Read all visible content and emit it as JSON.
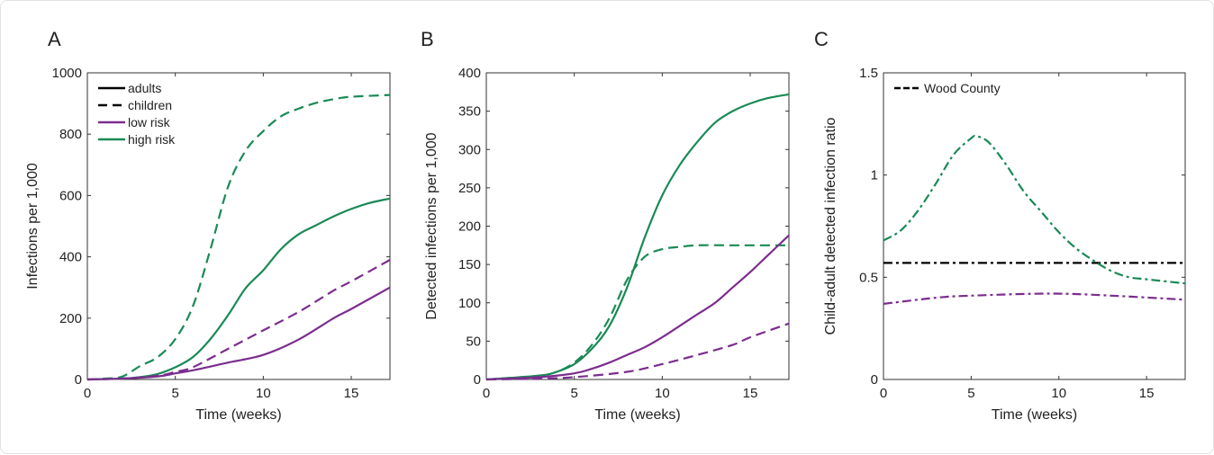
{
  "colors": {
    "low_risk": "#7b2d8e",
    "high_risk": "#1a8a55",
    "reference": "#000000"
  },
  "chart_data": [
    {
      "panel": "A",
      "type": "line",
      "xlabel": "Time (weeks)",
      "ylabel": "Infections per 1,000",
      "xlim": [
        0,
        17.2
      ],
      "ylim": [
        0,
        1000
      ],
      "xticks": [
        0,
        5,
        10,
        15
      ],
      "yticks": [
        0,
        200,
        400,
        600,
        800,
        1000
      ],
      "legend": {
        "placement": "top-left",
        "entries": [
          {
            "label": "adults",
            "style": "solid",
            "color": "#000000"
          },
          {
            "label": "children",
            "style": "dashed",
            "color": "#000000"
          },
          {
            "label": "low risk",
            "style": "solid",
            "color": "#7b2d8e"
          },
          {
            "label": "high risk",
            "style": "solid",
            "color": "#1a8a55"
          }
        ]
      },
      "series": [
        {
          "group": "high risk adults",
          "color": "#1a8a55",
          "style": "solid",
          "x": [
            0,
            2,
            3,
            4,
            5,
            6,
            7,
            8,
            9,
            10,
            11,
            12,
            13,
            14,
            15,
            16,
            17.2
          ],
          "y": [
            0,
            3,
            8,
            18,
            40,
            73,
            132,
            210,
            298,
            356,
            425,
            473,
            503,
            532,
            556,
            575,
            590
          ]
        },
        {
          "group": "high risk children",
          "color": "#1a8a55",
          "style": "dashed",
          "x": [
            0,
            1,
            2,
            3,
            4,
            5,
            6,
            7,
            8,
            9,
            10,
            11,
            12,
            13,
            14,
            15,
            17.2
          ],
          "y": [
            0,
            3,
            10,
            44,
            73,
            132,
            239,
            425,
            629,
            746,
            810,
            858,
            883,
            902,
            914,
            922,
            928
          ]
        },
        {
          "group": "low risk children",
          "color": "#7b2d8e",
          "style": "dashed",
          "x": [
            0,
            2,
            4,
            5,
            6,
            8,
            10,
            12,
            14,
            15,
            17.2
          ],
          "y": [
            0,
            3,
            12,
            25,
            40,
            100,
            160,
            220,
            290,
            320,
            390
          ]
        },
        {
          "group": "low risk adults",
          "color": "#7b2d8e",
          "style": "solid",
          "x": [
            0,
            2,
            4,
            5,
            6,
            8,
            10,
            12,
            14,
            15,
            17.2
          ],
          "y": [
            0,
            3,
            10,
            20,
            30,
            55,
            80,
            130,
            200,
            230,
            300
          ]
        }
      ]
    },
    {
      "panel": "B",
      "type": "line",
      "xlabel": "Time (weeks)",
      "ylabel": "Detected infections per 1,000",
      "xlim": [
        0,
        17.2
      ],
      "ylim": [
        0,
        400
      ],
      "xticks": [
        0,
        5,
        10,
        15
      ],
      "yticks": [
        0,
        50,
        100,
        150,
        200,
        250,
        300,
        350,
        400
      ],
      "series": [
        {
          "group": "high risk adults",
          "color": "#1a8a55",
          "style": "solid",
          "x": [
            0,
            3,
            4,
            5,
            6,
            7,
            8,
            9,
            10,
            11,
            12,
            13,
            14,
            15,
            16,
            17.2
          ],
          "y": [
            0,
            5,
            10,
            20,
            40,
            70,
            120,
            185,
            240,
            280,
            310,
            335,
            350,
            360,
            367,
            372
          ]
        },
        {
          "group": "high risk children",
          "color": "#1a8a55",
          "style": "dashed",
          "x": [
            0,
            3,
            4,
            5,
            6,
            7,
            8,
            9,
            10,
            11,
            12,
            14,
            17.2
          ],
          "y": [
            0,
            5,
            10,
            22,
            45,
            80,
            130,
            160,
            170,
            173,
            175,
            175,
            175
          ]
        },
        {
          "group": "low risk adults",
          "color": "#7b2d8e",
          "style": "solid",
          "x": [
            0,
            3,
            5,
            6,
            7,
            8,
            9,
            10,
            11,
            12,
            13,
            14,
            15,
            16,
            17.2
          ],
          "y": [
            0,
            3,
            8,
            14,
            22,
            32,
            42,
            55,
            70,
            85,
            100,
            120,
            140,
            162,
            188
          ]
        },
        {
          "group": "low risk children",
          "color": "#7b2d8e",
          "style": "dashed",
          "x": [
            0,
            3,
            5,
            8,
            10,
            12,
            14,
            15,
            17.2
          ],
          "y": [
            0,
            1,
            3,
            10,
            20,
            32,
            45,
            55,
            73
          ]
        }
      ]
    },
    {
      "panel": "C",
      "type": "line",
      "xlabel": "Time (weeks)",
      "ylabel": "Child-adult detected infection ratio",
      "xlim": [
        0,
        17.2
      ],
      "ylim": [
        0,
        1.5
      ],
      "xticks": [
        0,
        5,
        10,
        15
      ],
      "yticks": [
        0,
        0.5,
        1,
        1.5
      ],
      "legend": {
        "placement": "top-left",
        "entries": [
          {
            "label": "Wood County",
            "style": "dash-dot",
            "color": "#000000"
          }
        ]
      },
      "series": [
        {
          "group": "Wood County",
          "color": "#000000",
          "style": "dash-dot",
          "x": [
            0,
            17.2
          ],
          "y": [
            0.57,
            0.57
          ]
        },
        {
          "group": "high risk",
          "color": "#1a8a55",
          "style": "dash-dot",
          "x": [
            0,
            1,
            2,
            3,
            4,
            5,
            5.3,
            6,
            7,
            8,
            9,
            10,
            11,
            12,
            13,
            14,
            15,
            17.2
          ],
          "y": [
            0.68,
            0.73,
            0.83,
            0.96,
            1.1,
            1.18,
            1.19,
            1.16,
            1.05,
            0.92,
            0.82,
            0.72,
            0.64,
            0.58,
            0.53,
            0.5,
            0.49,
            0.47
          ]
        },
        {
          "group": "low risk",
          "color": "#7b2d8e",
          "style": "dash-dot",
          "x": [
            0,
            3,
            5,
            9.5,
            13,
            17.2
          ],
          "y": [
            0.37,
            0.4,
            0.41,
            0.42,
            0.41,
            0.39
          ]
        }
      ]
    }
  ]
}
